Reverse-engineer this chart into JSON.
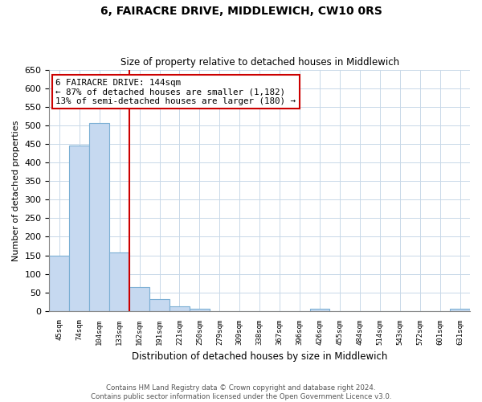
{
  "title": "6, FAIRACRE DRIVE, MIDDLEWICH, CW10 0RS",
  "subtitle": "Size of property relative to detached houses in Middlewich",
  "xlabel": "Distribution of detached houses by size in Middlewich",
  "ylabel": "Number of detached properties",
  "bar_labels": [
    "45sqm",
    "74sqm",
    "104sqm",
    "133sqm",
    "162sqm",
    "191sqm",
    "221sqm",
    "250sqm",
    "279sqm",
    "309sqm",
    "338sqm",
    "367sqm",
    "396sqm",
    "426sqm",
    "455sqm",
    "484sqm",
    "514sqm",
    "543sqm",
    "572sqm",
    "601sqm",
    "631sqm"
  ],
  "bar_values": [
    148,
    447,
    507,
    158,
    65,
    32,
    12,
    5,
    0,
    0,
    0,
    0,
    0,
    5,
    0,
    0,
    0,
    0,
    0,
    0,
    5
  ],
  "bar_color": "#c6d9f0",
  "bar_edge_color": "#7bafd4",
  "vline_x_idx": 3,
  "vline_color": "#cc0000",
  "ylim": [
    0,
    650
  ],
  "yticks": [
    0,
    50,
    100,
    150,
    200,
    250,
    300,
    350,
    400,
    450,
    500,
    550,
    600,
    650
  ],
  "annotation_title": "6 FAIRACRE DRIVE: 144sqm",
  "annotation_line1": "← 87% of detached houses are smaller (1,182)",
  "annotation_line2": "13% of semi-detached houses are larger (180) →",
  "annotation_box_color": "#ffffff",
  "annotation_box_edge": "#cc0000",
  "footer_line1": "Contains HM Land Registry data © Crown copyright and database right 2024.",
  "footer_line2": "Contains public sector information licensed under the Open Government Licence v3.0.",
  "bg_color": "#ffffff",
  "grid_color": "#c8d8e8"
}
